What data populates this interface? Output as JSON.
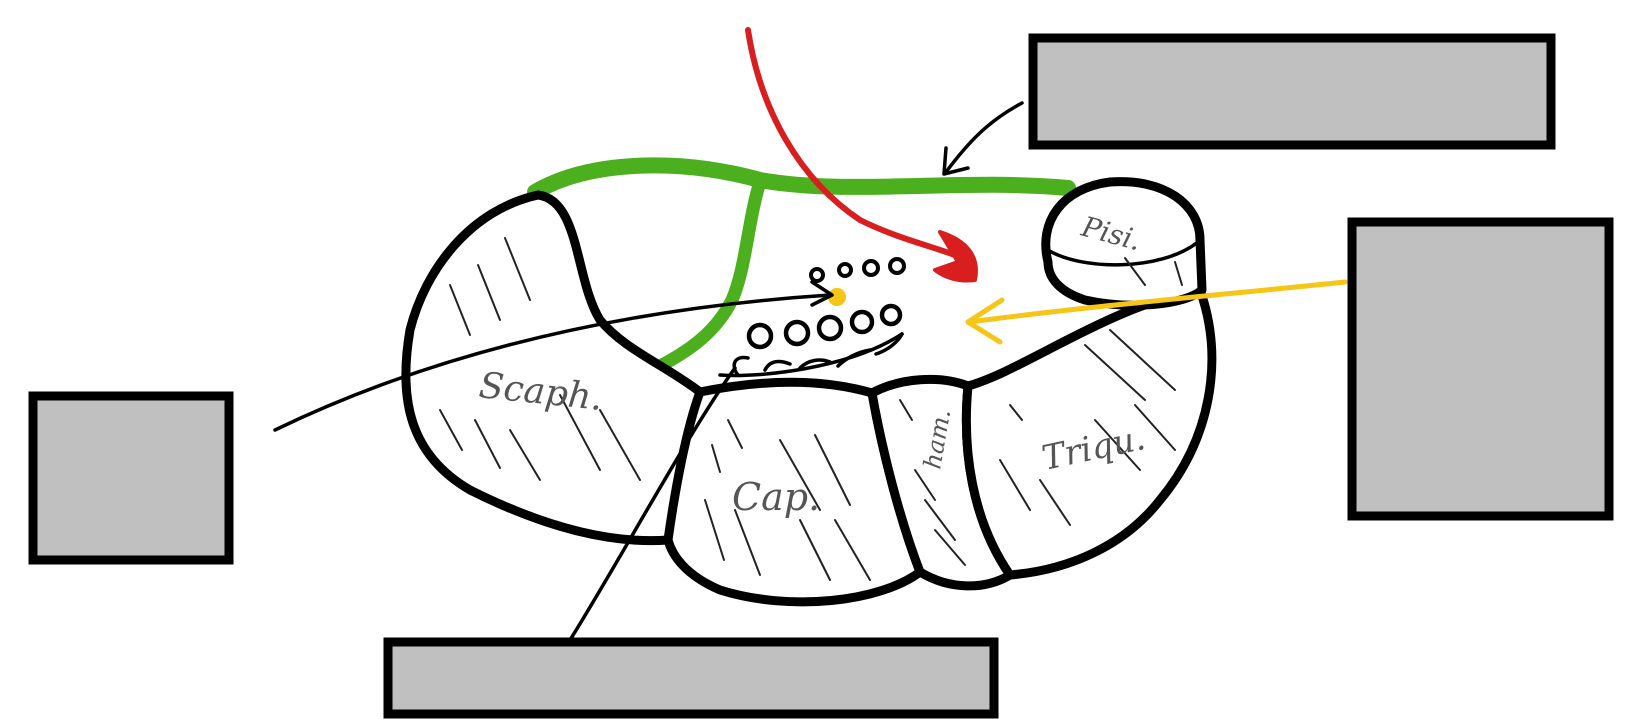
{
  "bones": {
    "scaphoid": "Scaph.",
    "capitate": "Cap.",
    "hamate": "ham.",
    "triquetrum": "Triqu.",
    "pisiform": "Pisi."
  },
  "colors": {
    "retinaculum": "#4caf1e",
    "artery": "#d81e1e",
    "nerve": "#f5c518",
    "bone_outline": "#000000",
    "label_box": "#c0c0c0"
  },
  "label_boxes": [
    "top-right",
    "right",
    "left",
    "bottom"
  ]
}
